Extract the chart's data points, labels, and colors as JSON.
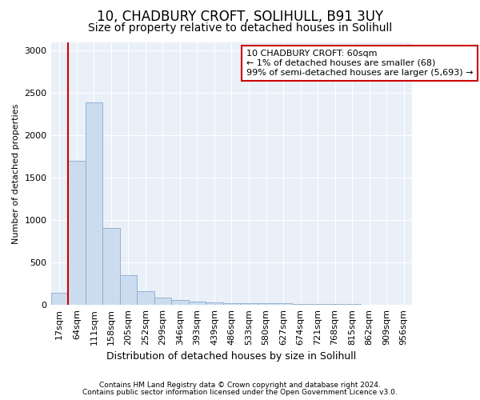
{
  "title1": "10, CHADBURY CROFT, SOLIHULL, B91 3UY",
  "title2": "Size of property relative to detached houses in Solihull",
  "xlabel": "Distribution of detached houses by size in Solihull",
  "ylabel": "Number of detached properties",
  "bar_labels": [
    "17sqm",
    "64sqm",
    "111sqm",
    "158sqm",
    "205sqm",
    "252sqm",
    "299sqm",
    "346sqm",
    "393sqm",
    "439sqm",
    "486sqm",
    "533sqm",
    "580sqm",
    "627sqm",
    "674sqm",
    "721sqm",
    "768sqm",
    "815sqm",
    "862sqm",
    "909sqm",
    "956sqm"
  ],
  "bar_values": [
    140,
    1700,
    2390,
    910,
    350,
    160,
    90,
    55,
    38,
    28,
    25,
    22,
    20,
    18,
    15,
    12,
    10,
    8,
    6,
    5,
    4
  ],
  "bar_color": "#ccdcef",
  "bar_edge_color": "#88aacc",
  "property_line_x": 0.5,
  "property_line_color": "#cc0000",
  "annotation_text": "10 CHADBURY CROFT: 60sqm\n← 1% of detached houses are smaller (68)\n99% of semi-detached houses are larger (5,693) →",
  "annotation_box_color": "#ffffff",
  "annotation_box_edge": "#cc0000",
  "ylim": [
    0,
    3100
  ],
  "yticks": [
    0,
    500,
    1000,
    1500,
    2000,
    2500,
    3000
  ],
  "footer1": "Contains HM Land Registry data © Crown copyright and database right 2024.",
  "footer2": "Contains public sector information licensed under the Open Government Licence v3.0.",
  "bg_color": "#ffffff",
  "plot_bg_color": "#eaf0f8",
  "grid_color": "#ffffff",
  "title1_fontsize": 12,
  "title2_fontsize": 10,
  "xlabel_fontsize": 9,
  "ylabel_fontsize": 8,
  "tick_fontsize": 8,
  "annotation_fontsize": 8,
  "footer_fontsize": 6.5
}
